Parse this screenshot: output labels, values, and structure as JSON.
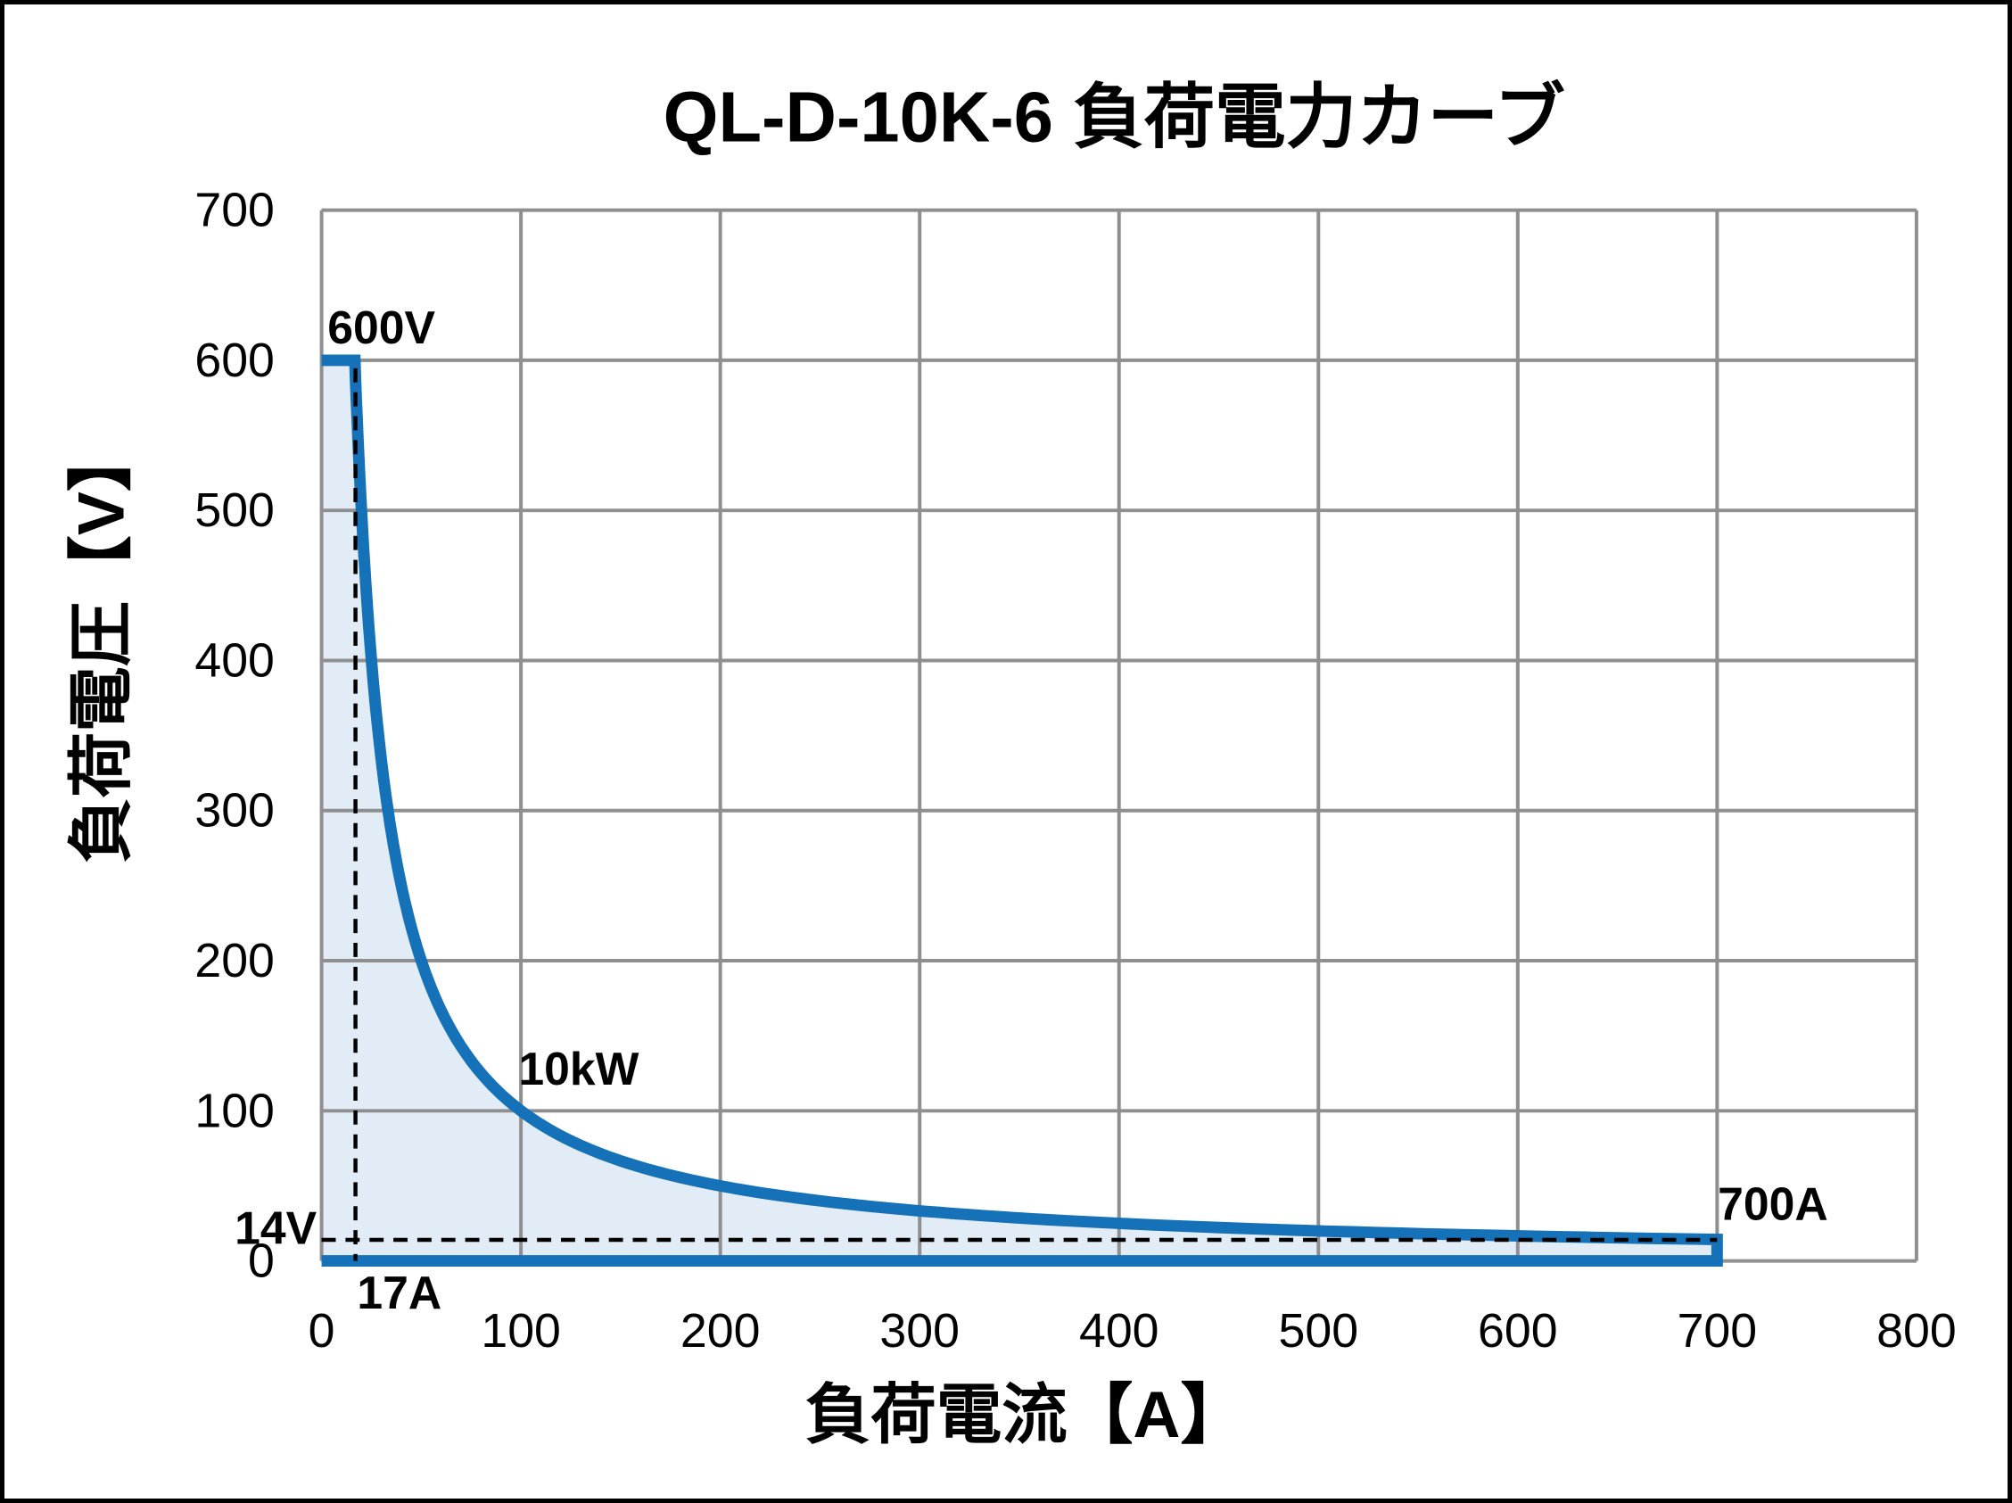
{
  "chart_data": {
    "type": "line",
    "title": "QL-D-10K-6  負荷電力カーブ",
    "xlabel": "負荷電流【A】",
    "ylabel": "負荷電圧【V】",
    "xlim": [
      0,
      800
    ],
    "ylim": [
      0,
      700
    ],
    "x_ticks": [
      0,
      100,
      200,
      300,
      400,
      500,
      600,
      700,
      800
    ],
    "y_ticks": [
      0,
      100,
      200,
      300,
      400,
      500,
      600,
      700
    ],
    "grid": true,
    "legend_position": "none",
    "colors": {
      "curve": "#1571B8",
      "fill": "#E1ECF7",
      "gridline": "#8F8F8F",
      "dashed_line": "#000000",
      "text": "#000000",
      "background": "#FFFFFF",
      "border": "#000000"
    },
    "series": [
      {
        "name": "load-power-envelope",
        "power_w": 10000,
        "cv_segment": {
          "voltage_v": 600,
          "from_a": 0,
          "to_a": 16.7
        },
        "cp_segment": {
          "power_kw": 10,
          "from_a": 16.7,
          "to_a": 700
        },
        "cc_segment": {
          "current_a": 700,
          "from_v": 14.3,
          "to_v": 0
        },
        "key_points": [
          [
            0,
            600
          ],
          [
            16.7,
            600
          ],
          [
            25,
            400
          ],
          [
            33.3,
            300
          ],
          [
            50,
            200
          ],
          [
            100,
            100
          ],
          [
            200,
            50
          ],
          [
            300,
            33.3
          ],
          [
            400,
            25
          ],
          [
            500,
            20
          ],
          [
            600,
            16.7
          ],
          [
            700,
            14.3
          ],
          [
            700,
            0
          ],
          [
            0,
            0
          ]
        ]
      }
    ],
    "reference_lines": [
      {
        "orientation": "vertical",
        "x_a": 17,
        "style": "dashed",
        "label": "17A"
      },
      {
        "orientation": "horizontal",
        "y_v": 14,
        "style": "dashed",
        "label": "14V"
      }
    ],
    "annotations": [
      {
        "text": "600V",
        "x_a": 30,
        "y_v": 622,
        "name": "annotation-max-voltage"
      },
      {
        "text": "17A",
        "x_a": 39,
        "y_v": -21,
        "name": "annotation-corner-current"
      },
      {
        "text": "10kW",
        "x_a": 129,
        "y_v": 128,
        "name": "annotation-max-power"
      },
      {
        "text": "14V",
        "x_a": -23,
        "y_v": 22,
        "name": "annotation-min-voltage"
      },
      {
        "text": "700A",
        "x_a": 728,
        "y_v": 38,
        "name": "annotation-max-current"
      }
    ]
  }
}
